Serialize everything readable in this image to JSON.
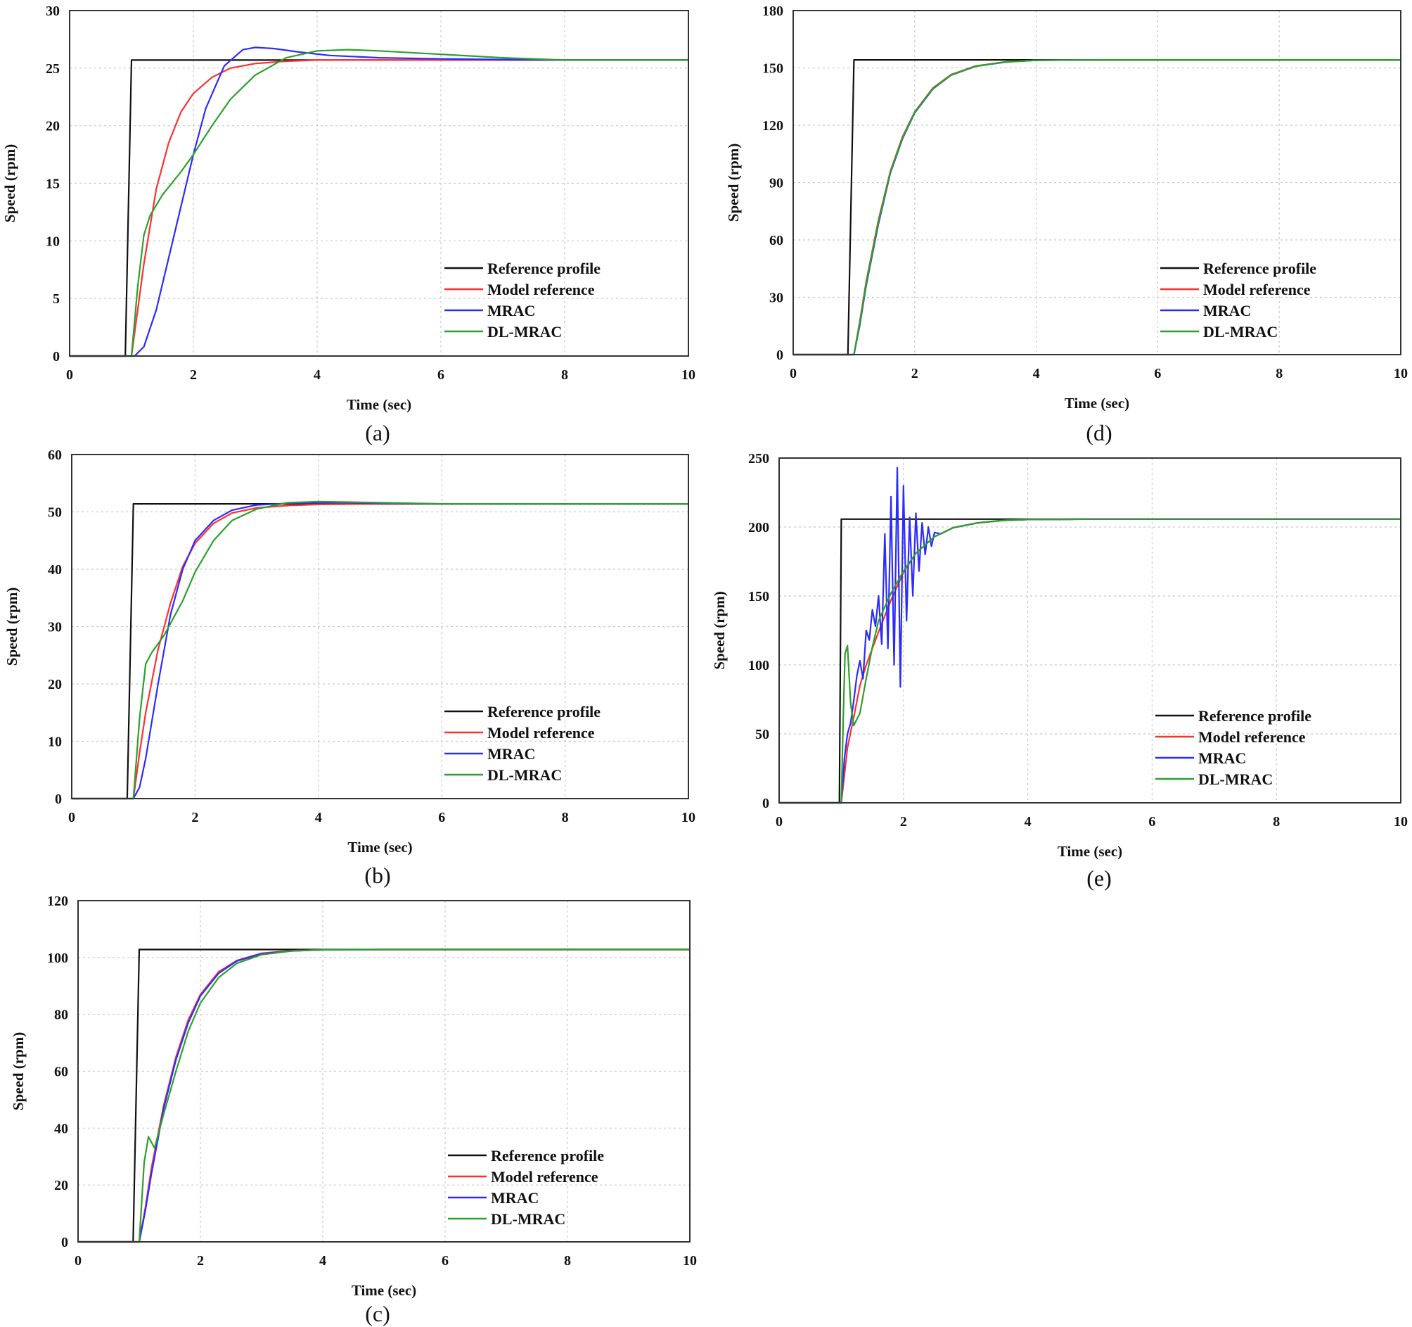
{
  "figure": {
    "legend_labels": [
      "Reference profile",
      "Model reference",
      "MRAC",
      "DL-MRAC"
    ],
    "colors": {
      "reference": "#111111",
      "model": "#ff3030",
      "mrac": "#2b2bff",
      "dlmrac": "#2ca02c"
    }
  },
  "chart_data": [
    {
      "id": "a",
      "type": "line",
      "caption": "(a)",
      "xlabel": "Time (sec)",
      "ylabel": "Speed (rpm)",
      "xlim": [
        0,
        10
      ],
      "ylim": [
        0,
        30
      ],
      "xticks": [
        0,
        2,
        4,
        6,
        8,
        10
      ],
      "yticks": [
        0,
        5,
        10,
        15,
        20,
        25,
        30
      ],
      "grid": true,
      "legend": "bottom-right",
      "series": [
        {
          "name": "Reference profile",
          "key": "reference",
          "x": [
            0,
            0.9,
            1.0,
            10
          ],
          "y": [
            0,
            0,
            25.7,
            25.7
          ]
        },
        {
          "name": "Model reference",
          "key": "model",
          "x": [
            0,
            1.0,
            1.1,
            1.2,
            1.4,
            1.6,
            1.8,
            2.0,
            2.3,
            2.6,
            3.0,
            3.5,
            4.0,
            5.0,
            6.0,
            8.0,
            10.0
          ],
          "y": [
            0,
            0,
            4,
            8,
            14.5,
            18.5,
            21.2,
            22.8,
            24.2,
            25.0,
            25.4,
            25.6,
            25.7,
            25.7,
            25.7,
            25.7,
            25.7
          ]
        },
        {
          "name": "MRAC",
          "key": "mrac",
          "x": [
            0,
            1.05,
            1.2,
            1.4,
            1.6,
            1.8,
            2.0,
            2.2,
            2.5,
            2.8,
            3.0,
            3.3,
            3.7,
            4.2,
            5.0,
            6.0,
            7.0,
            8.0,
            10.0
          ],
          "y": [
            0,
            0,
            0.8,
            4,
            8.5,
            13,
            17.5,
            21.5,
            25.2,
            26.6,
            26.8,
            26.7,
            26.4,
            26.1,
            25.9,
            25.8,
            25.75,
            25.7,
            25.7
          ]
        },
        {
          "name": "DL-MRAC",
          "key": "dlmrac",
          "x": [
            0,
            1.0,
            1.1,
            1.2,
            1.3,
            1.5,
            1.8,
            2.0,
            2.3,
            2.6,
            3.0,
            3.5,
            4.0,
            4.5,
            5.0,
            6.0,
            7.0,
            8.0,
            10.0
          ],
          "y": [
            0,
            0,
            6,
            10.5,
            12.2,
            14,
            16,
            17.5,
            20,
            22.3,
            24.4,
            25.9,
            26.5,
            26.6,
            26.5,
            26.2,
            25.9,
            25.7,
            25.7
          ]
        }
      ]
    },
    {
      "id": "b",
      "type": "line",
      "caption": "(b)",
      "xlabel": "Time (sec)",
      "ylabel": "Speed (rpm)",
      "xlim": [
        0,
        10
      ],
      "ylim": [
        0,
        60
      ],
      "xticks": [
        0,
        2,
        4,
        6,
        8,
        10
      ],
      "yticks": [
        0,
        10,
        20,
        30,
        40,
        50,
        60
      ],
      "grid": true,
      "legend": "bottom-right",
      "series": [
        {
          "name": "Reference profile",
          "key": "reference",
          "x": [
            0,
            0.9,
            1.0,
            10
          ],
          "y": [
            0,
            0,
            51.4,
            51.4
          ]
        },
        {
          "name": "Model reference",
          "key": "model",
          "x": [
            0,
            1.0,
            1.1,
            1.2,
            1.4,
            1.6,
            1.8,
            2.0,
            2.3,
            2.6,
            3.0,
            3.5,
            4.0,
            5.0,
            10.0
          ],
          "y": [
            0,
            0,
            8,
            15,
            26,
            34,
            40.5,
            44.5,
            48,
            49.8,
            50.7,
            51.1,
            51.3,
            51.4,
            51.4
          ]
        },
        {
          "name": "MRAC",
          "key": "mrac",
          "x": [
            0,
            1.0,
            1.1,
            1.2,
            1.4,
            1.6,
            1.8,
            2.0,
            2.3,
            2.6,
            3.0,
            3.5,
            4.0,
            4.5,
            5.0,
            6.0,
            10.0
          ],
          "y": [
            0,
            0,
            2,
            7,
            20,
            32,
            40,
            45,
            48.5,
            50.3,
            51.2,
            51.5,
            51.6,
            51.6,
            51.5,
            51.4,
            51.4
          ]
        },
        {
          "name": "DL-MRAC",
          "key": "dlmrac",
          "x": [
            0,
            1.0,
            1.1,
            1.2,
            1.3,
            1.5,
            1.8,
            2.0,
            2.3,
            2.6,
            3.0,
            3.5,
            4.0,
            4.5,
            5.0,
            6.0,
            10.0
          ],
          "y": [
            0,
            0,
            14,
            23.5,
            25.5,
            28.5,
            34.5,
            39.5,
            45,
            48.5,
            50.5,
            51.6,
            51.8,
            51.7,
            51.6,
            51.4,
            51.4
          ]
        }
      ]
    },
    {
      "id": "c",
      "type": "line",
      "caption": "(c)",
      "xlabel": "Time (sec)",
      "ylabel": "Speed (rpm)",
      "xlim": [
        0,
        10
      ],
      "ylim": [
        0,
        120
      ],
      "xticks": [
        0,
        2,
        4,
        6,
        8,
        10
      ],
      "yticks": [
        0,
        20,
        40,
        60,
        80,
        100,
        120
      ],
      "grid": true,
      "legend": "bottom-right",
      "series": [
        {
          "name": "Reference profile",
          "key": "reference",
          "x": [
            0,
            0.9,
            1.0,
            10
          ],
          "y": [
            0,
            0,
            102.8,
            102.8
          ]
        },
        {
          "name": "Model reference",
          "key": "model",
          "x": [
            0,
            1.0,
            1.1,
            1.2,
            1.4,
            1.6,
            1.8,
            2.0,
            2.3,
            2.6,
            3.0,
            3.5,
            4.0,
            5.0,
            10.0
          ],
          "y": [
            0,
            0,
            12,
            26,
            48,
            65,
            78,
            87,
            95,
            99,
            101.5,
            102.4,
            102.7,
            102.8,
            102.8
          ]
        },
        {
          "name": "MRAC",
          "key": "mrac",
          "x": [
            0,
            1.0,
            1.1,
            1.2,
            1.4,
            1.6,
            1.8,
            2.0,
            2.3,
            2.6,
            3.0,
            3.5,
            4.0,
            5.0,
            10.0
          ],
          "y": [
            0,
            0,
            11,
            24,
            47,
            64,
            77,
            86.5,
            94.5,
            98.8,
            101.3,
            102.3,
            102.7,
            102.8,
            102.8
          ]
        },
        {
          "name": "DL-MRAC",
          "key": "dlmrac",
          "x": [
            0,
            1.0,
            1.08,
            1.15,
            1.25,
            1.4,
            1.6,
            1.8,
            2.0,
            2.3,
            2.6,
            3.0,
            3.5,
            4.0,
            5.0,
            10.0
          ],
          "y": [
            0,
            0,
            28,
            37,
            33,
            45,
            60,
            74,
            84,
            93,
            98,
            101,
            102.3,
            102.7,
            102.8,
            102.8
          ]
        }
      ]
    },
    {
      "id": "d",
      "type": "line",
      "caption": "(d)",
      "xlabel": "Time (sec)",
      "ylabel": "Speed (rpm)",
      "xlim": [
        0,
        10
      ],
      "ylim": [
        0,
        180
      ],
      "xticks": [
        0,
        2,
        4,
        6,
        8,
        10
      ],
      "yticks": [
        0,
        30,
        60,
        90,
        120,
        150,
        180
      ],
      "grid": true,
      "legend": "bottom-right",
      "series": [
        {
          "name": "Reference profile",
          "key": "reference",
          "x": [
            0,
            0.9,
            1.0,
            10
          ],
          "y": [
            0,
            0,
            154.2,
            154.2
          ]
        },
        {
          "name": "Model reference",
          "key": "model",
          "x": [
            0,
            1.0,
            1.1,
            1.2,
            1.4,
            1.6,
            1.8,
            2.0,
            2.3,
            2.6,
            3.0,
            3.5,
            4.0,
            5.0,
            10.0
          ],
          "y": [
            0,
            0,
            18,
            38,
            70,
            96,
            114,
            127,
            139.5,
            146.5,
            151,
            153.2,
            154,
            154.2,
            154.2
          ]
        },
        {
          "name": "MRAC",
          "key": "mrac",
          "x": [
            0,
            1.0,
            1.1,
            1.2,
            1.4,
            1.6,
            1.8,
            2.0,
            2.3,
            2.6,
            3.0,
            3.5,
            4.0,
            5.0,
            10.0
          ],
          "y": [
            0,
            0,
            16,
            36,
            68,
            95,
            113,
            126.5,
            139,
            146.2,
            150.8,
            153.1,
            154,
            154.2,
            154.2
          ]
        },
        {
          "name": "DL-MRAC",
          "key": "dlmrac",
          "x": [
            0,
            1.0,
            1.1,
            1.2,
            1.4,
            1.6,
            1.8,
            2.0,
            2.3,
            2.6,
            3.0,
            3.5,
            4.0,
            5.0,
            10.0
          ],
          "y": [
            0,
            0,
            17,
            37,
            69,
            95.5,
            113.5,
            126.8,
            139.2,
            146.3,
            150.9,
            153.1,
            154,
            154.2,
            154.2
          ]
        }
      ]
    },
    {
      "id": "e",
      "type": "line",
      "caption": "(e)",
      "xlabel": "Time (sec)",
      "ylabel": "Speed (rpm)",
      "xlim": [
        0,
        10
      ],
      "ylim": [
        0,
        250
      ],
      "xticks": [
        0,
        2,
        4,
        6,
        8,
        10
      ],
      "yticks": [
        0,
        50,
        100,
        150,
        200,
        250
      ],
      "grid": true,
      "legend": "bottom-right",
      "series": [
        {
          "name": "Reference profile",
          "key": "reference",
          "x": [
            0,
            0.97,
            1.0,
            10
          ],
          "y": [
            0,
            0,
            205.7,
            205.7
          ]
        },
        {
          "name": "Model reference",
          "key": "model",
          "x": [
            0,
            1.0,
            1.1,
            1.2,
            1.3,
            1.4,
            1.6,
            1.8,
            2.0,
            2.2,
            2.5,
            2.8,
            3.2,
            3.6,
            4.0,
            5.0,
            10.0
          ],
          "y": [
            0,
            0,
            40,
            62,
            85,
            100,
            124,
            147,
            167,
            181,
            193,
            199.5,
            203,
            204.8,
            205.4,
            205.7,
            205.7
          ]
        },
        {
          "name": "MRAC",
          "key": "mrac",
          "x": [
            0,
            1.0,
            1.05,
            1.1,
            1.15,
            1.2,
            1.25,
            1.3,
            1.35,
            1.4,
            1.45,
            1.5,
            1.55,
            1.6,
            1.65,
            1.7,
            1.75,
            1.8,
            1.85,
            1.9,
            1.95,
            2.0,
            2.05,
            2.1,
            2.15,
            2.2,
            2.25,
            2.3,
            2.35,
            2.4,
            2.45,
            2.5,
            2.6,
            2.8,
            3.2,
            3.6,
            4.0,
            5.0,
            10.0
          ],
          "y": [
            0,
            0,
            32,
            50,
            58,
            74,
            92,
            103,
            90,
            125,
            118,
            140,
            128,
            150,
            115,
            195,
            112,
            222,
            100,
            243,
            84,
            230,
            132,
            207,
            150,
            210,
            168,
            203,
            180,
            200,
            186,
            196,
            195,
            199.5,
            203,
            204.8,
            205.4,
            205.7,
            205.7
          ]
        },
        {
          "name": "DL-MRAC",
          "key": "dlmrac",
          "x": [
            0,
            1.0,
            1.03,
            1.06,
            1.1,
            1.15,
            1.2,
            1.3,
            1.4,
            1.5,
            1.6,
            1.8,
            2.0,
            2.2,
            2.5,
            2.8,
            3.2,
            3.6,
            4.0,
            5.0,
            10.0
          ],
          "y": [
            0,
            0,
            60,
            108,
            114,
            72,
            56,
            65,
            90,
            113,
            132,
            152,
            168,
            181,
            193,
            199.5,
            203,
            204.8,
            205.4,
            205.7,
            205.7
          ]
        }
      ]
    }
  ]
}
